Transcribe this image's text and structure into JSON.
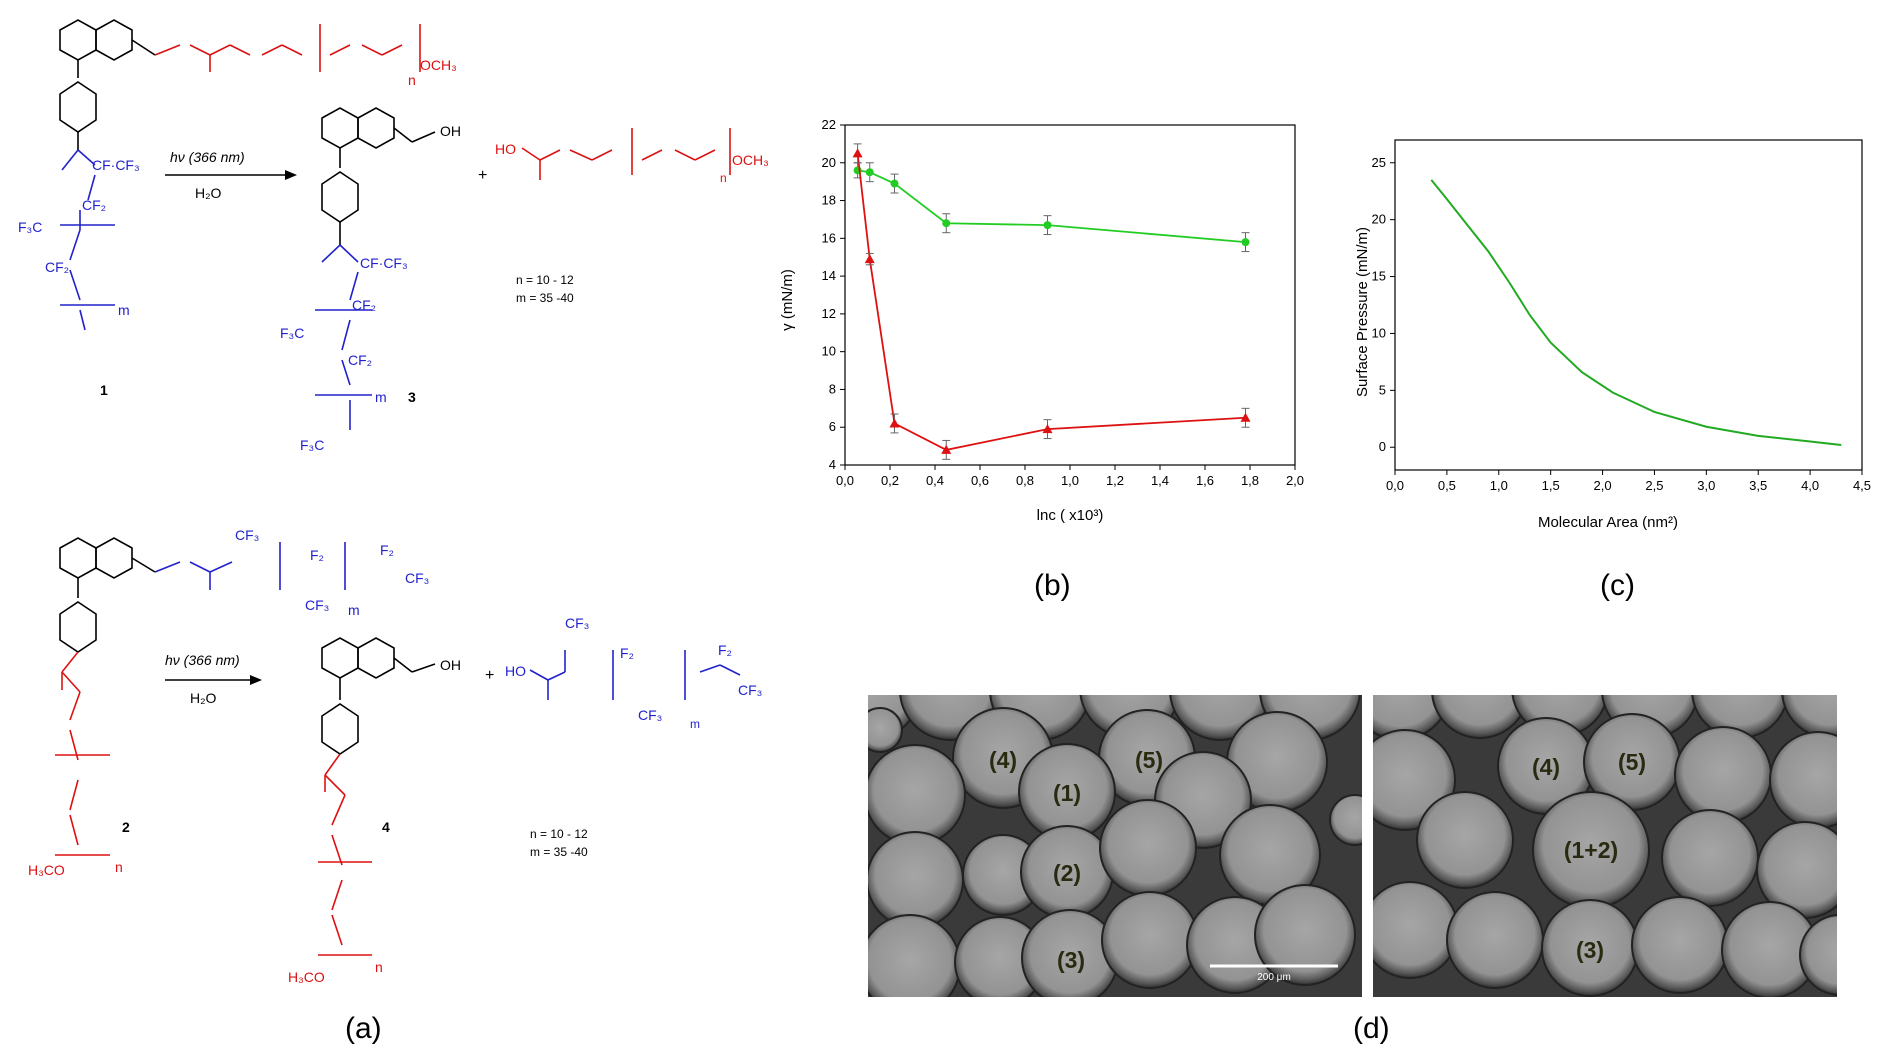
{
  "panels": {
    "a": {
      "label": "(a)",
      "scheme1": {
        "reaction_condition_top": "hν (366 nm)",
        "reaction_condition_bottom": "H₂O",
        "compound_1_number": "1",
        "compound_3_number": "3",
        "plus": "+",
        "n_range": "n = 10 - 12",
        "m_range": "m = 35 -40",
        "peg_end": "OCH₃",
        "acid_group": "HO",
        "oh_group": "OH",
        "cf_group": "CF·CF₃",
        "cf2_group": "CF₂",
        "f3c_group": "F₃C",
        "subscript_n": "n",
        "subscript_m": "m"
      },
      "scheme2": {
        "reaction_condition_top": "hν (366 nm)",
        "reaction_condition_bottom": "H₂O",
        "compound_2_number": "2",
        "compound_4_number": "4",
        "plus": "+",
        "n_range": "n = 10 - 12",
        "m_range": "m = 35 -40",
        "peg_start": "H₃CO",
        "acid_group": "HO",
        "oh_group": "OH",
        "cf3_group": "CF₃",
        "cf2_group": "F₂",
        "subscript_n": "n",
        "subscript_m": "m"
      }
    },
    "b": {
      "label": "(b)",
      "chart_data": {
        "type": "line",
        "xlabel": "lnc ( x10³)",
        "ylabel": "γ (mN/m)",
        "xlim": [
          0.0,
          2.0
        ],
        "ylim": [
          4,
          22
        ],
        "xticks": [
          "0,0",
          "0,2",
          "0,4",
          "0,6",
          "0,8",
          "1,0",
          "1,2",
          "1,4",
          "1,6",
          "1,8",
          "2,0"
        ],
        "yticks": [
          "4",
          "6",
          "8",
          "10",
          "12",
          "14",
          "16",
          "18",
          "20",
          "22"
        ],
        "series": [
          {
            "color": "#22cc22",
            "marker": "circle",
            "x": [
              0.056,
              0.11,
              0.22,
              0.45,
              0.9,
              1.78
            ],
            "y": [
              19.6,
              19.5,
              18.9,
              16.8,
              16.7,
              15.8
            ],
            "err": [
              0.4,
              0.5,
              0.5,
              0.5,
              0.5,
              0.5
            ]
          },
          {
            "color": "#dd1111",
            "marker": "triangle",
            "x": [
              0.056,
              0.11,
              0.22,
              0.45,
              0.9,
              1.78
            ],
            "y": [
              20.5,
              14.9,
              6.2,
              4.8,
              5.9,
              6.5
            ],
            "err": [
              0.5,
              0.3,
              0.5,
              0.5,
              0.5,
              0.5
            ]
          }
        ]
      }
    },
    "c": {
      "label": "(c)",
      "chart_data": {
        "type": "line",
        "xlabel": "Molecular Area (nm²)",
        "ylabel": "Surface Pressure (mN/m)",
        "xlim": [
          0.0,
          4.5
        ],
        "ylim": [
          -2,
          27
        ],
        "xticks": [
          "0,0",
          "0,5",
          "1,0",
          "1,5",
          "2,0",
          "2,5",
          "3,0",
          "3,5",
          "4,0",
          "4,5"
        ],
        "yticks": [
          "0",
          "5",
          "10",
          "15",
          "20",
          "25"
        ],
        "series": [
          {
            "color": "#22aa22",
            "x": [
              0.35,
              0.5,
              0.7,
              0.9,
              1.1,
              1.3,
              1.5,
              1.8,
              2.1,
              2.5,
              3.0,
              3.5,
              4.0,
              4.3
            ],
            "y": [
              23.5,
              21.8,
              19.5,
              17.2,
              14.5,
              11.6,
              9.2,
              6.6,
              4.8,
              3.1,
              1.8,
              1.0,
              0.5,
              0.2
            ]
          }
        ]
      }
    },
    "d": {
      "label": "(d)",
      "left_image": {
        "labels": [
          "(4)",
          "(5)",
          "(1)",
          "(2)",
          "(3)"
        ],
        "scale_bar": "200 μm"
      },
      "right_image": {
        "labels": [
          "(4)",
          "(5)",
          "(1+2)",
          "(3)"
        ]
      }
    }
  }
}
